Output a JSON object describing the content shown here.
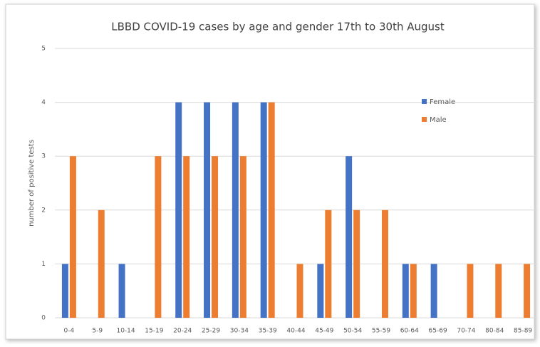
{
  "chart_data": {
    "type": "bar",
    "title": "LBBD COVID-19 cases by age and gender 17th to 30th August",
    "y_label": "number of positive tests",
    "categories": [
      "0-4",
      "5-9",
      "10-14",
      "15-19",
      "20-24",
      "25-29",
      "30-34",
      "35-39",
      "40-44",
      "45-49",
      "50-54",
      "55-59",
      "60-64",
      "65-69",
      "70-74",
      "80-84",
      "85-89"
    ],
    "series": [
      {
        "name": "Female",
        "color": "#4472c4",
        "values": [
          1,
          0,
          1,
          0,
          4,
          4,
          4,
          4,
          0,
          1,
          3,
          0,
          1,
          1,
          0,
          0,
          0
        ]
      },
      {
        "name": "Male",
        "color": "#ed7d31",
        "values": [
          3,
          2,
          0,
          3,
          3,
          3,
          3,
          4,
          1,
          2,
          2,
          2,
          1,
          0,
          1,
          1,
          1
        ]
      }
    ],
    "ylim": [
      0,
      5
    ],
    "yticks": [
      0,
      1,
      2,
      3,
      4,
      5
    ],
    "grid": true,
    "legend": "upper right"
  }
}
